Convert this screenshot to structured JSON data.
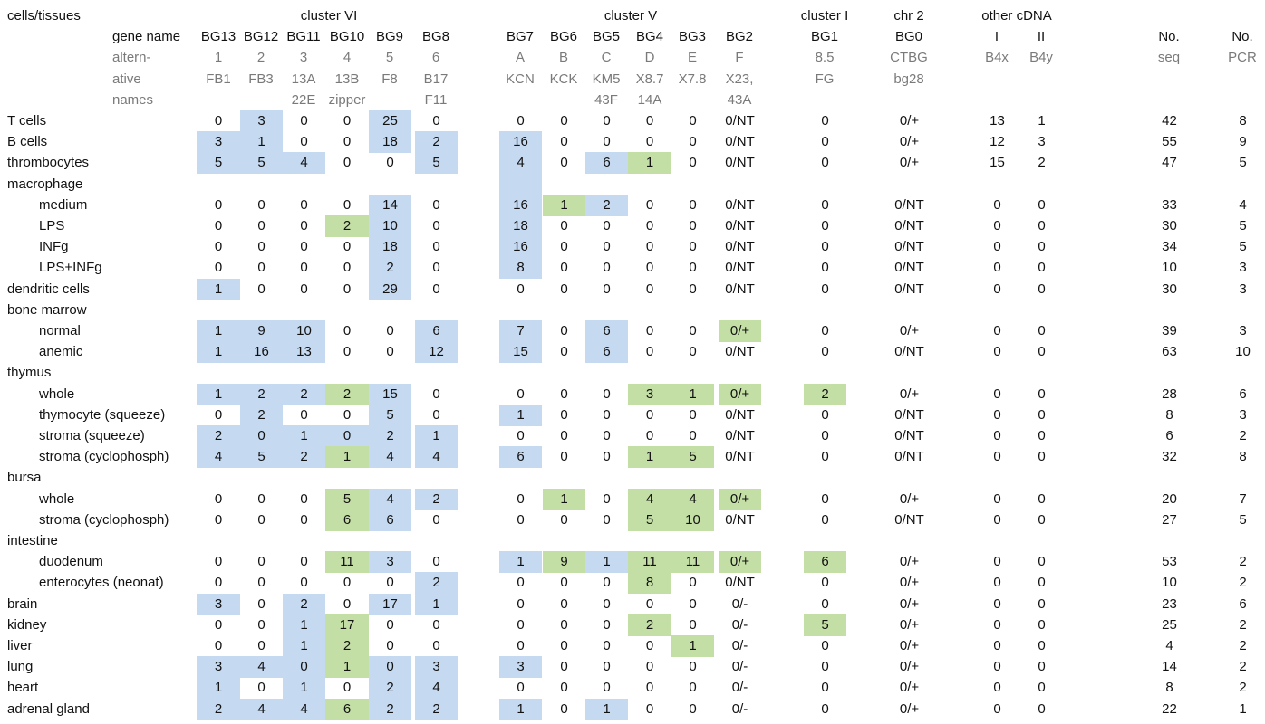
{
  "header": {
    "corner_label": "cells/tissues",
    "gene_name_label": "gene name",
    "alt_label_lines": [
      "altern-",
      "ative",
      "names"
    ],
    "groups": [
      {
        "id": "cluster_vi",
        "label": "cluster VI"
      },
      {
        "id": "cluster_v",
        "label": "cluster V"
      },
      {
        "id": "cluster_i",
        "label": "cluster I"
      },
      {
        "id": "chr2",
        "label": "chr 2"
      },
      {
        "id": "other",
        "label": "other cDNA"
      }
    ],
    "columns": [
      {
        "name": "BG13",
        "alt": [
          "1",
          "FB1",
          ""
        ]
      },
      {
        "name": "BG12",
        "alt": [
          "2",
          "FB3",
          ""
        ]
      },
      {
        "name": "BG11",
        "alt": [
          "3",
          "13A",
          "22E"
        ]
      },
      {
        "name": "BG10",
        "alt": [
          "4",
          "13B",
          "zipper"
        ]
      },
      {
        "name": "BG9",
        "alt": [
          "5",
          "F8",
          ""
        ]
      },
      {
        "name": "BG8",
        "alt": [
          "6",
          "B17",
          "F11"
        ]
      },
      {
        "name": "BG7",
        "alt": [
          "A",
          "KCN",
          ""
        ]
      },
      {
        "name": "BG6",
        "alt": [
          "B",
          "KCK",
          ""
        ]
      },
      {
        "name": "BG5",
        "alt": [
          "C",
          "KM5",
          "43F"
        ]
      },
      {
        "name": "BG4",
        "alt": [
          "D",
          "X8.7",
          "14A"
        ]
      },
      {
        "name": "BG3",
        "alt": [
          "E",
          "X7.8",
          ""
        ]
      },
      {
        "name": "BG2",
        "alt": [
          "F",
          "X23,",
          "43A"
        ]
      },
      {
        "name": "BG1",
        "alt": [
          "8.5",
          "FG",
          ""
        ]
      },
      {
        "name": "BG0",
        "alt": [
          "CTBG",
          "bg28",
          ""
        ]
      },
      {
        "name": "I",
        "alt": [
          "B4x",
          "",
          ""
        ]
      },
      {
        "name": "II",
        "alt": [
          "B4y",
          "",
          ""
        ]
      },
      {
        "name": "No.",
        "alt": [
          "seq",
          "",
          ""
        ]
      },
      {
        "name": "No.",
        "alt": [
          "PCR",
          "",
          ""
        ]
      }
    ]
  },
  "rows": [
    {
      "label": "T cells",
      "indent": false,
      "values": [
        "0",
        "3",
        "0",
        "0",
        "25",
        "0",
        "0",
        "0",
        "0",
        "0",
        "0",
        "0/NT",
        "0",
        "0/+",
        "13",
        "1",
        "42",
        "8"
      ],
      "hl": [
        "",
        "b",
        "",
        "",
        "b",
        "",
        "",
        "",
        "",
        "",
        "",
        "",
        "",
        "",
        "",
        "",
        "",
        ""
      ]
    },
    {
      "label": "B cells",
      "indent": false,
      "values": [
        "3",
        "1",
        "0",
        "0",
        "18",
        "2",
        "16",
        "0",
        "0",
        "0",
        "0",
        "0/NT",
        "0",
        "0/+",
        "12",
        "3",
        "55",
        "9"
      ],
      "hl": [
        "b",
        "b",
        "",
        "",
        "b",
        "b",
        "b",
        "",
        "",
        "",
        "",
        "",
        "",
        "",
        "",
        "",
        "",
        ""
      ]
    },
    {
      "label": "thrombocytes",
      "indent": false,
      "values": [
        "5",
        "5",
        "4",
        "0",
        "0",
        "5",
        "4",
        "0",
        "6",
        "1",
        "0",
        "0/NT",
        "0",
        "0/+",
        "15",
        "2",
        "47",
        "5"
      ],
      "hl": [
        "b",
        "b",
        "b",
        "",
        "",
        "b",
        "b",
        "",
        "b",
        "g",
        "",
        "",
        "",
        "",
        "",
        "",
        "",
        ""
      ]
    },
    {
      "label": "macrophage",
      "indent": false,
      "values": [
        "",
        "",
        "",
        "",
        "",
        "",
        "",
        "",
        "",
        "",
        "",
        "",
        "",
        "",
        "",
        "",
        "",
        ""
      ],
      "hl": [
        "",
        "",
        "",
        "",
        "",
        "",
        "b",
        "",
        "",
        "",
        "",
        "",
        "",
        "",
        "",
        "",
        "",
        ""
      ]
    },
    {
      "label": "medium",
      "indent": true,
      "values": [
        "0",
        "0",
        "0",
        "0",
        "14",
        "0",
        "16",
        "1",
        "2",
        "0",
        "0",
        "0/NT",
        "0",
        "0/NT",
        "0",
        "0",
        "33",
        "4"
      ],
      "hl": [
        "",
        "",
        "",
        "",
        "b",
        "",
        "b",
        "g",
        "b",
        "",
        "",
        "",
        "",
        "",
        "",
        "",
        "",
        ""
      ]
    },
    {
      "label": "LPS",
      "indent": true,
      "values": [
        "0",
        "0",
        "0",
        "2",
        "10",
        "0",
        "18",
        "0",
        "0",
        "0",
        "0",
        "0/NT",
        "0",
        "0/NT",
        "0",
        "0",
        "30",
        "5"
      ],
      "hl": [
        "",
        "",
        "",
        "g",
        "b",
        "",
        "b",
        "",
        "",
        "",
        "",
        "",
        "",
        "",
        "",
        "",
        "",
        ""
      ]
    },
    {
      "label": "INFg",
      "indent": true,
      "values": [
        "0",
        "0",
        "0",
        "0",
        "18",
        "0",
        "16",
        "0",
        "0",
        "0",
        "0",
        "0/NT",
        "0",
        "0/NT",
        "0",
        "0",
        "34",
        "5"
      ],
      "hl": [
        "",
        "",
        "",
        "",
        "b",
        "",
        "b",
        "",
        "",
        "",
        "",
        "",
        "",
        "",
        "",
        "",
        "",
        ""
      ]
    },
    {
      "label": "LPS+INFg",
      "indent": true,
      "values": [
        "0",
        "0",
        "0",
        "0",
        "2",
        "0",
        "8",
        "0",
        "0",
        "0",
        "0",
        "0/NT",
        "0",
        "0/NT",
        "0",
        "0",
        "10",
        "3"
      ],
      "hl": [
        "",
        "",
        "",
        "",
        "b",
        "",
        "b",
        "",
        "",
        "",
        "",
        "",
        "",
        "",
        "",
        "",
        "",
        ""
      ]
    },
    {
      "label": "dendritic cells",
      "indent": false,
      "values": [
        "1",
        "0",
        "0",
        "0",
        "29",
        "0",
        "0",
        "0",
        "0",
        "0",
        "0",
        "0/NT",
        "0",
        "0/NT",
        "0",
        "0",
        "30",
        "3"
      ],
      "hl": [
        "b",
        "",
        "",
        "",
        "b",
        "",
        "",
        "",
        "",
        "",
        "",
        "",
        "",
        "",
        "",
        "",
        "",
        ""
      ]
    },
    {
      "label": "bone marrow",
      "indent": false,
      "values": [
        "",
        "",
        "",
        "",
        "",
        "",
        "",
        "",
        "",
        "",
        "",
        "",
        "",
        "",
        "",
        "",
        "",
        ""
      ],
      "hl": [
        "",
        "",
        "",
        "",
        "",
        "",
        "",
        "",
        "",
        "",
        "",
        "",
        "",
        "",
        "",
        "",
        "",
        ""
      ]
    },
    {
      "label": "normal",
      "indent": true,
      "values": [
        "1",
        "9",
        "10",
        "0",
        "0",
        "6",
        "7",
        "0",
        "6",
        "0",
        "0",
        "0/+",
        "0",
        "0/+",
        "0",
        "0",
        "39",
        "3"
      ],
      "hl": [
        "b",
        "b",
        "b",
        "",
        "",
        "b",
        "b",
        "",
        "b",
        "",
        "",
        "g",
        "",
        "",
        "",
        "",
        "",
        ""
      ]
    },
    {
      "label": "anemic",
      "indent": true,
      "values": [
        "1",
        "16",
        "13",
        "0",
        "0",
        "12",
        "15",
        "0",
        "6",
        "0",
        "0",
        "0/NT",
        "0",
        "0/NT",
        "0",
        "0",
        "63",
        "10"
      ],
      "hl": [
        "b",
        "b",
        "b",
        "",
        "",
        "b",
        "b",
        "",
        "b",
        "",
        "",
        "",
        "",
        "",
        "",
        "",
        "",
        ""
      ]
    },
    {
      "label": "thymus",
      "indent": false,
      "values": [
        "",
        "",
        "",
        "",
        "",
        "",
        "",
        "",
        "",
        "",
        "",
        "",
        "",
        "",
        "",
        "",
        "",
        ""
      ],
      "hl": [
        "",
        "",
        "",
        "",
        "",
        "",
        "",
        "",
        "",
        "",
        "",
        "",
        "",
        "",
        "",
        "",
        "",
        ""
      ]
    },
    {
      "label": "whole",
      "indent": true,
      "values": [
        "1",
        "2",
        "2",
        "2",
        "15",
        "0",
        "0",
        "0",
        "0",
        "3",
        "1",
        "0/+",
        "2",
        "0/+",
        "0",
        "0",
        "28",
        "6"
      ],
      "hl": [
        "b",
        "b",
        "b",
        "g",
        "b",
        "",
        "",
        "",
        "",
        "g",
        "g",
        "g",
        "g",
        "",
        "",
        "",
        "",
        ""
      ]
    },
    {
      "label": "thymocyte (squeeze)",
      "indent": true,
      "values": [
        "0",
        "2",
        "0",
        "0",
        "5",
        "0",
        "1",
        "0",
        "0",
        "0",
        "0",
        "0/NT",
        "0",
        "0/NT",
        "0",
        "0",
        "8",
        "3"
      ],
      "hl": [
        "",
        "b",
        "",
        "",
        "b",
        "",
        "b",
        "",
        "",
        "",
        "",
        "",
        "",
        "",
        "",
        "",
        "",
        ""
      ]
    },
    {
      "label": "stroma (squeeze)",
      "indent": true,
      "values": [
        "2",
        "0",
        "1",
        "0",
        "2",
        "1",
        "0",
        "0",
        "0",
        "0",
        "0",
        "0/NT",
        "0",
        "0/NT",
        "0",
        "0",
        "6",
        "2"
      ],
      "hl": [
        "b",
        "b",
        "b",
        "b",
        "b",
        "b",
        "",
        "",
        "",
        "",
        "",
        "",
        "",
        "",
        "",
        "",
        "",
        ""
      ]
    },
    {
      "label": "stroma (cyclophosph)",
      "indent": true,
      "values": [
        "4",
        "5",
        "2",
        "1",
        "4",
        "4",
        "6",
        "0",
        "0",
        "1",
        "5",
        "0/NT",
        "0",
        "0/NT",
        "0",
        "0",
        "32",
        "8"
      ],
      "hl": [
        "b",
        "b",
        "b",
        "g",
        "b",
        "b",
        "b",
        "",
        "",
        "g",
        "g",
        "",
        "",
        "",
        "",
        "",
        "",
        ""
      ]
    },
    {
      "label": "bursa",
      "indent": false,
      "values": [
        "",
        "",
        "",
        "",
        "",
        "",
        "",
        "",
        "",
        "",
        "",
        "",
        "",
        "",
        "",
        "",
        "",
        ""
      ],
      "hl": [
        "",
        "",
        "",
        "",
        "",
        "",
        "",
        "",
        "",
        "",
        "",
        "",
        "",
        "",
        "",
        "",
        "",
        ""
      ]
    },
    {
      "label": "whole",
      "indent": true,
      "values": [
        "0",
        "0",
        "0",
        "5",
        "4",
        "2",
        "0",
        "1",
        "0",
        "4",
        "4",
        "0/+",
        "0",
        "0/+",
        "0",
        "0",
        "20",
        "7"
      ],
      "hl": [
        "",
        "",
        "",
        "g",
        "b",
        "b",
        "",
        "g",
        "",
        "g",
        "g",
        "g",
        "",
        "",
        "",
        "",
        "",
        ""
      ]
    },
    {
      "label": "stroma (cyclophosph)",
      "indent": true,
      "values": [
        "0",
        "0",
        "0",
        "6",
        "6",
        "0",
        "0",
        "0",
        "0",
        "5",
        "10",
        "0/NT",
        "0",
        "0/NT",
        "0",
        "0",
        "27",
        "5"
      ],
      "hl": [
        "",
        "",
        "",
        "g",
        "b",
        "",
        "",
        "",
        "",
        "g",
        "g",
        "",
        "",
        "",
        "",
        "",
        "",
        ""
      ]
    },
    {
      "label": "intestine",
      "indent": false,
      "values": [
        "",
        "",
        "",
        "",
        "",
        "",
        "",
        "",
        "",
        "",
        "",
        "",
        "",
        "",
        "",
        "",
        "",
        ""
      ],
      "hl": [
        "",
        "",
        "",
        "",
        "",
        "",
        "",
        "",
        "",
        "",
        "",
        "",
        "",
        "",
        "",
        "",
        "",
        ""
      ]
    },
    {
      "label": "duodenum",
      "indent": true,
      "values": [
        "0",
        "0",
        "0",
        "11",
        "3",
        "0",
        "1",
        "9",
        "1",
        "11",
        "11",
        "0/+",
        "6",
        "0/+",
        "0",
        "0",
        "53",
        "2"
      ],
      "hl": [
        "",
        "",
        "",
        "g",
        "b",
        "",
        "b",
        "g",
        "b",
        "g",
        "g",
        "g",
        "g",
        "",
        "",
        "",
        "",
        ""
      ]
    },
    {
      "label": "enterocytes (neonat)",
      "indent": true,
      "values": [
        "0",
        "0",
        "0",
        "0",
        "0",
        "2",
        "0",
        "0",
        "0",
        "8",
        "0",
        "0/NT",
        "0",
        "0/+",
        "0",
        "0",
        "10",
        "2"
      ],
      "hl": [
        "",
        "",
        "",
        "",
        "",
        "b",
        "",
        "",
        "",
        "g",
        "",
        "",
        "",
        "",
        "",
        "",
        "",
        ""
      ]
    },
    {
      "label": "brain",
      "indent": false,
      "values": [
        "3",
        "0",
        "2",
        "0",
        "17",
        "1",
        "0",
        "0",
        "0",
        "0",
        "0",
        "0/-",
        "0",
        "0/+",
        "0",
        "0",
        "23",
        "6"
      ],
      "hl": [
        "b",
        "",
        "b",
        "",
        "b",
        "b",
        "",
        "",
        "",
        "",
        "",
        "",
        "",
        "",
        "",
        "",
        "",
        ""
      ]
    },
    {
      "label": "kidney",
      "indent": false,
      "values": [
        "0",
        "0",
        "1",
        "17",
        "0",
        "0",
        "0",
        "0",
        "0",
        "2",
        "0",
        "0/-",
        "5",
        "0/+",
        "0",
        "0",
        "25",
        "2"
      ],
      "hl": [
        "",
        "",
        "b",
        "g",
        "",
        "",
        "",
        "",
        "",
        "g",
        "",
        "",
        "g",
        "",
        "",
        "",
        "",
        ""
      ]
    },
    {
      "label": "liver",
      "indent": false,
      "values": [
        "0",
        "0",
        "1",
        "2",
        "0",
        "0",
        "0",
        "0",
        "0",
        "0",
        "1",
        "0/-",
        "0",
        "0/+",
        "0",
        "0",
        "4",
        "2"
      ],
      "hl": [
        "",
        "",
        "b",
        "g",
        "",
        "",
        "",
        "",
        "",
        "",
        "g",
        "",
        "",
        "",
        "",
        "",
        "",
        ""
      ]
    },
    {
      "label": "lung",
      "indent": false,
      "values": [
        "3",
        "4",
        "0",
        "1",
        "0",
        "3",
        "3",
        "0",
        "0",
        "0",
        "0",
        "0/-",
        "0",
        "0/+",
        "0",
        "0",
        "14",
        "2"
      ],
      "hl": [
        "b",
        "b",
        "b",
        "g",
        "b",
        "b",
        "b",
        "",
        "",
        "",
        "",
        "",
        "",
        "",
        "",
        "",
        "",
        ""
      ]
    },
    {
      "label": "heart",
      "indent": false,
      "values": [
        "1",
        "0",
        "1",
        "0",
        "2",
        "4",
        "0",
        "0",
        "0",
        "0",
        "0",
        "0/-",
        "0",
        "0/+",
        "0",
        "0",
        "8",
        "2"
      ],
      "hl": [
        "b",
        "",
        "b",
        "",
        "b",
        "b",
        "",
        "",
        "",
        "",
        "",
        "",
        "",
        "",
        "",
        "",
        "",
        ""
      ]
    },
    {
      "label": "adrenal gland",
      "indent": false,
      "values": [
        "2",
        "4",
        "4",
        "6",
        "2",
        "2",
        "1",
        "0",
        "1",
        "0",
        "0",
        "0/-",
        "0",
        "0/+",
        "0",
        "0",
        "22",
        "1"
      ],
      "hl": [
        "b",
        "b",
        "b",
        "g",
        "b",
        "b",
        "b",
        "",
        "b",
        "",
        "",
        "",
        "",
        "",
        "",
        "",
        "",
        ""
      ]
    }
  ]
}
